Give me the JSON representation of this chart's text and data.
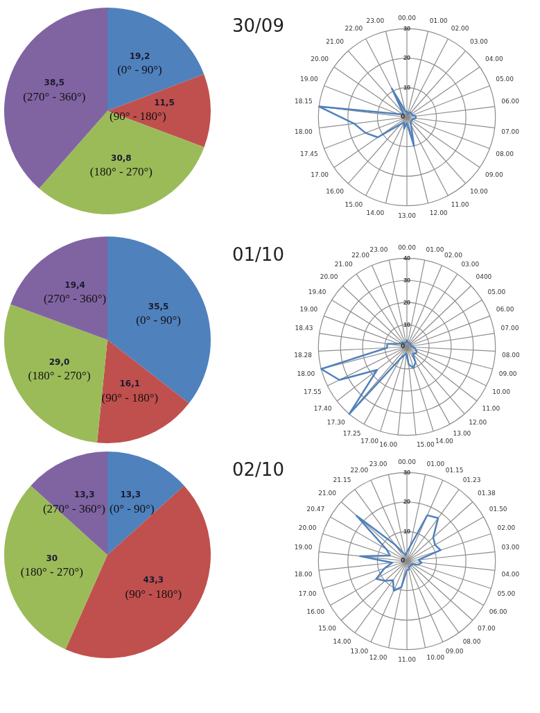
{
  "chart_data": [
    {
      "type": "pie",
      "title": "30/09",
      "categories": [
        "(0° - 90°)",
        "(90° - 180°)",
        "(180° - 270°)",
        "(270° - 360°)"
      ],
      "values": [
        19.2,
        11.5,
        30.8,
        38.5
      ],
      "value_labels": [
        "19,2",
        "11,5",
        "30,8",
        "38,5"
      ],
      "colors": [
        "#4f81bd",
        "#c0504d",
        "#9bbb59",
        "#8064a2"
      ]
    },
    {
      "type": "radar",
      "categories": [
        "00.00",
        "01.00",
        "02.00",
        "03.00",
        "04.00",
        "05.00",
        "06.00",
        "07.00",
        "08.00",
        "09.00",
        "10.00",
        "11.00",
        "12.00",
        "13.00",
        "14.00",
        "15.00",
        "16.00",
        "17.00",
        "17.45",
        "18.00",
        "18.15",
        "19.00",
        "20.00",
        "21.00",
        "22.00",
        "23.00"
      ],
      "series": [
        {
          "color": "#4f81bd",
          "values": [
            2,
            1,
            2,
            2,
            2,
            2,
            3,
            3,
            2,
            2,
            2,
            3,
            10,
            2,
            4,
            2,
            3,
            12,
            15,
            18,
            30,
            3,
            2,
            2,
            11,
            2
          ]
        }
      ],
      "ylim": [
        0,
        30
      ],
      "yticks": [
        0,
        10,
        20,
        30
      ],
      "grid": true,
      "marker": "none"
    },
    {
      "type": "pie",
      "title": "01/10",
      "categories": [
        "(0° - 90°)",
        "(90° - 180°)",
        "(180° - 270°)",
        "(270° - 360°)"
      ],
      "values": [
        35.5,
        16.1,
        29.0,
        19.4
      ],
      "value_labels": [
        "35,5",
        "16,1",
        "29,0",
        "19,4"
      ],
      "colors": [
        "#4f81bd",
        "#c0504d",
        "#9bbb59",
        "#8064a2"
      ]
    },
    {
      "type": "radar",
      "categories": [
        "00.00",
        "01.00",
        "02.00",
        "03.00",
        "0400",
        "05.00",
        "06.00",
        "07.00",
        "08.00",
        "09.00",
        "10.00",
        "11.00",
        "12.00",
        "13.00",
        "14.00",
        "15.00",
        "16.00",
        "17.00",
        "17.25",
        "17.30",
        "17.40",
        "17.55",
        "18.00",
        "18.28",
        "18.43",
        "19.00",
        "19.40",
        "20.00",
        "21.00",
        "22.00",
        "23.00"
      ],
      "series": [
        {
          "color": "#4f81bd",
          "values": [
            3,
            2,
            2,
            2,
            2,
            2,
            2,
            2,
            3,
            4,
            5,
            5,
            4,
            8,
            10,
            8,
            3,
            4,
            6,
            40,
            17,
            34,
            40,
            9,
            9,
            4,
            3,
            3,
            2,
            2,
            2
          ]
        }
      ],
      "ylim": [
        0,
        40
      ],
      "yticks": [
        0,
        10,
        20,
        30,
        40
      ],
      "grid": true,
      "marker": "none"
    },
    {
      "type": "pie",
      "title": "02/10",
      "categories": [
        "(0° - 90°)",
        "(90° - 180°)",
        "(180° - 270°)",
        "(270° - 360°)"
      ],
      "values": [
        13.3,
        43.3,
        30,
        13.3
      ],
      "value_labels": [
        "13,3",
        "43,3",
        "30",
        "13,3"
      ],
      "colors": [
        "#4f81bd",
        "#c0504d",
        "#9bbb59",
        "#8064a2"
      ]
    },
    {
      "type": "radar",
      "categories": [
        "00.00",
        "01.00",
        "01.15",
        "01.23",
        "01.38",
        "01.50",
        "02.00",
        "03.00",
        "04.00",
        "05.00",
        "06.00",
        "07.00",
        "08.00",
        "09.00",
        "10.00",
        "11.00",
        "12.00",
        "13.00",
        "14.00",
        "15.00",
        "16.00",
        "17.00",
        "18.00",
        "19.00",
        "20.00",
        "20.47",
        "21.00",
        "21.15",
        "22.00",
        "23.00"
      ],
      "series": [
        {
          "color": "#4f81bd",
          "values": [
            3,
            5,
            17,
            18,
            12,
            11,
            12,
            4,
            5,
            4,
            2,
            2,
            2,
            2,
            3,
            3,
            9,
            11,
            8,
            10,
            12,
            8,
            5,
            16,
            6,
            8,
            23,
            7,
            3,
            2
          ]
        }
      ],
      "ylim": [
        0,
        30
      ],
      "yticks": [
        0,
        10,
        20,
        30
      ],
      "grid": true,
      "marker": "none"
    }
  ]
}
